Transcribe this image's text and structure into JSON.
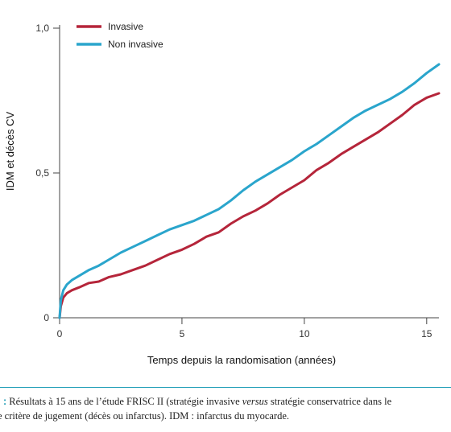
{
  "chart_data": {
    "type": "line",
    "title": "",
    "xlabel": "Temps depuis la randomisation (années)",
    "ylabel": "IDM et décès CV",
    "xlim": [
      0,
      15.5
    ],
    "ylim": [
      0,
      1.0
    ],
    "x_ticks": [
      0,
      5,
      10,
      15
    ],
    "x_tick_labels": [
      "0",
      "5",
      "10",
      "15"
    ],
    "y_ticks": [
      0,
      0.5,
      1.0
    ],
    "y_tick_labels": [
      "0",
      "0,5",
      "1,0"
    ],
    "legend_position": "top-left",
    "grid": false,
    "series": [
      {
        "name": "Invasive",
        "color": "#b5253a",
        "x": [
          0,
          0.05,
          0.15,
          0.3,
          0.5,
          0.8,
          1.2,
          1.6,
          2.0,
          2.5,
          3.0,
          3.5,
          4.0,
          4.5,
          5.0,
          5.5,
          6.0,
          6.5,
          7.0,
          7.5,
          8.0,
          8.5,
          9.0,
          9.5,
          10.0,
          10.5,
          11.0,
          11.5,
          12.0,
          12.5,
          13.0,
          13.5,
          14.0,
          14.5,
          15.0,
          15.5
        ],
        "y": [
          0,
          0.04,
          0.07,
          0.085,
          0.095,
          0.105,
          0.12,
          0.125,
          0.14,
          0.15,
          0.165,
          0.18,
          0.2,
          0.22,
          0.235,
          0.255,
          0.28,
          0.295,
          0.325,
          0.35,
          0.37,
          0.395,
          0.425,
          0.45,
          0.475,
          0.51,
          0.535,
          0.565,
          0.59,
          0.615,
          0.64,
          0.67,
          0.7,
          0.735,
          0.76,
          0.775
        ]
      },
      {
        "name": "Non invasive",
        "color": "#2aa5cc",
        "x": [
          0,
          0.05,
          0.15,
          0.3,
          0.5,
          0.8,
          1.2,
          1.6,
          2.0,
          2.5,
          3.0,
          3.5,
          4.0,
          4.5,
          5.0,
          5.5,
          6.0,
          6.5,
          7.0,
          7.5,
          8.0,
          8.5,
          9.0,
          9.5,
          10.0,
          10.5,
          11.0,
          11.5,
          12.0,
          12.5,
          13.0,
          13.5,
          14.0,
          14.5,
          15.0,
          15.5
        ],
        "y": [
          0,
          0.06,
          0.095,
          0.115,
          0.13,
          0.145,
          0.165,
          0.18,
          0.2,
          0.225,
          0.245,
          0.265,
          0.285,
          0.305,
          0.32,
          0.335,
          0.355,
          0.375,
          0.405,
          0.44,
          0.47,
          0.495,
          0.52,
          0.545,
          0.575,
          0.6,
          0.63,
          0.66,
          0.69,
          0.715,
          0.735,
          0.755,
          0.78,
          0.81,
          0.845,
          0.875
        ]
      }
    ]
  },
  "caption": {
    "lead": "l :",
    "text_before": " Résultats à 15 ans de l’étude FRISC II (stratégie invasive ",
    "italic": "versus",
    "text_after": " stratégie conservatrice dans le",
    "line2": "e critère de jugement (décès ou infarctus). IDM : infarctus du myocarde."
  }
}
